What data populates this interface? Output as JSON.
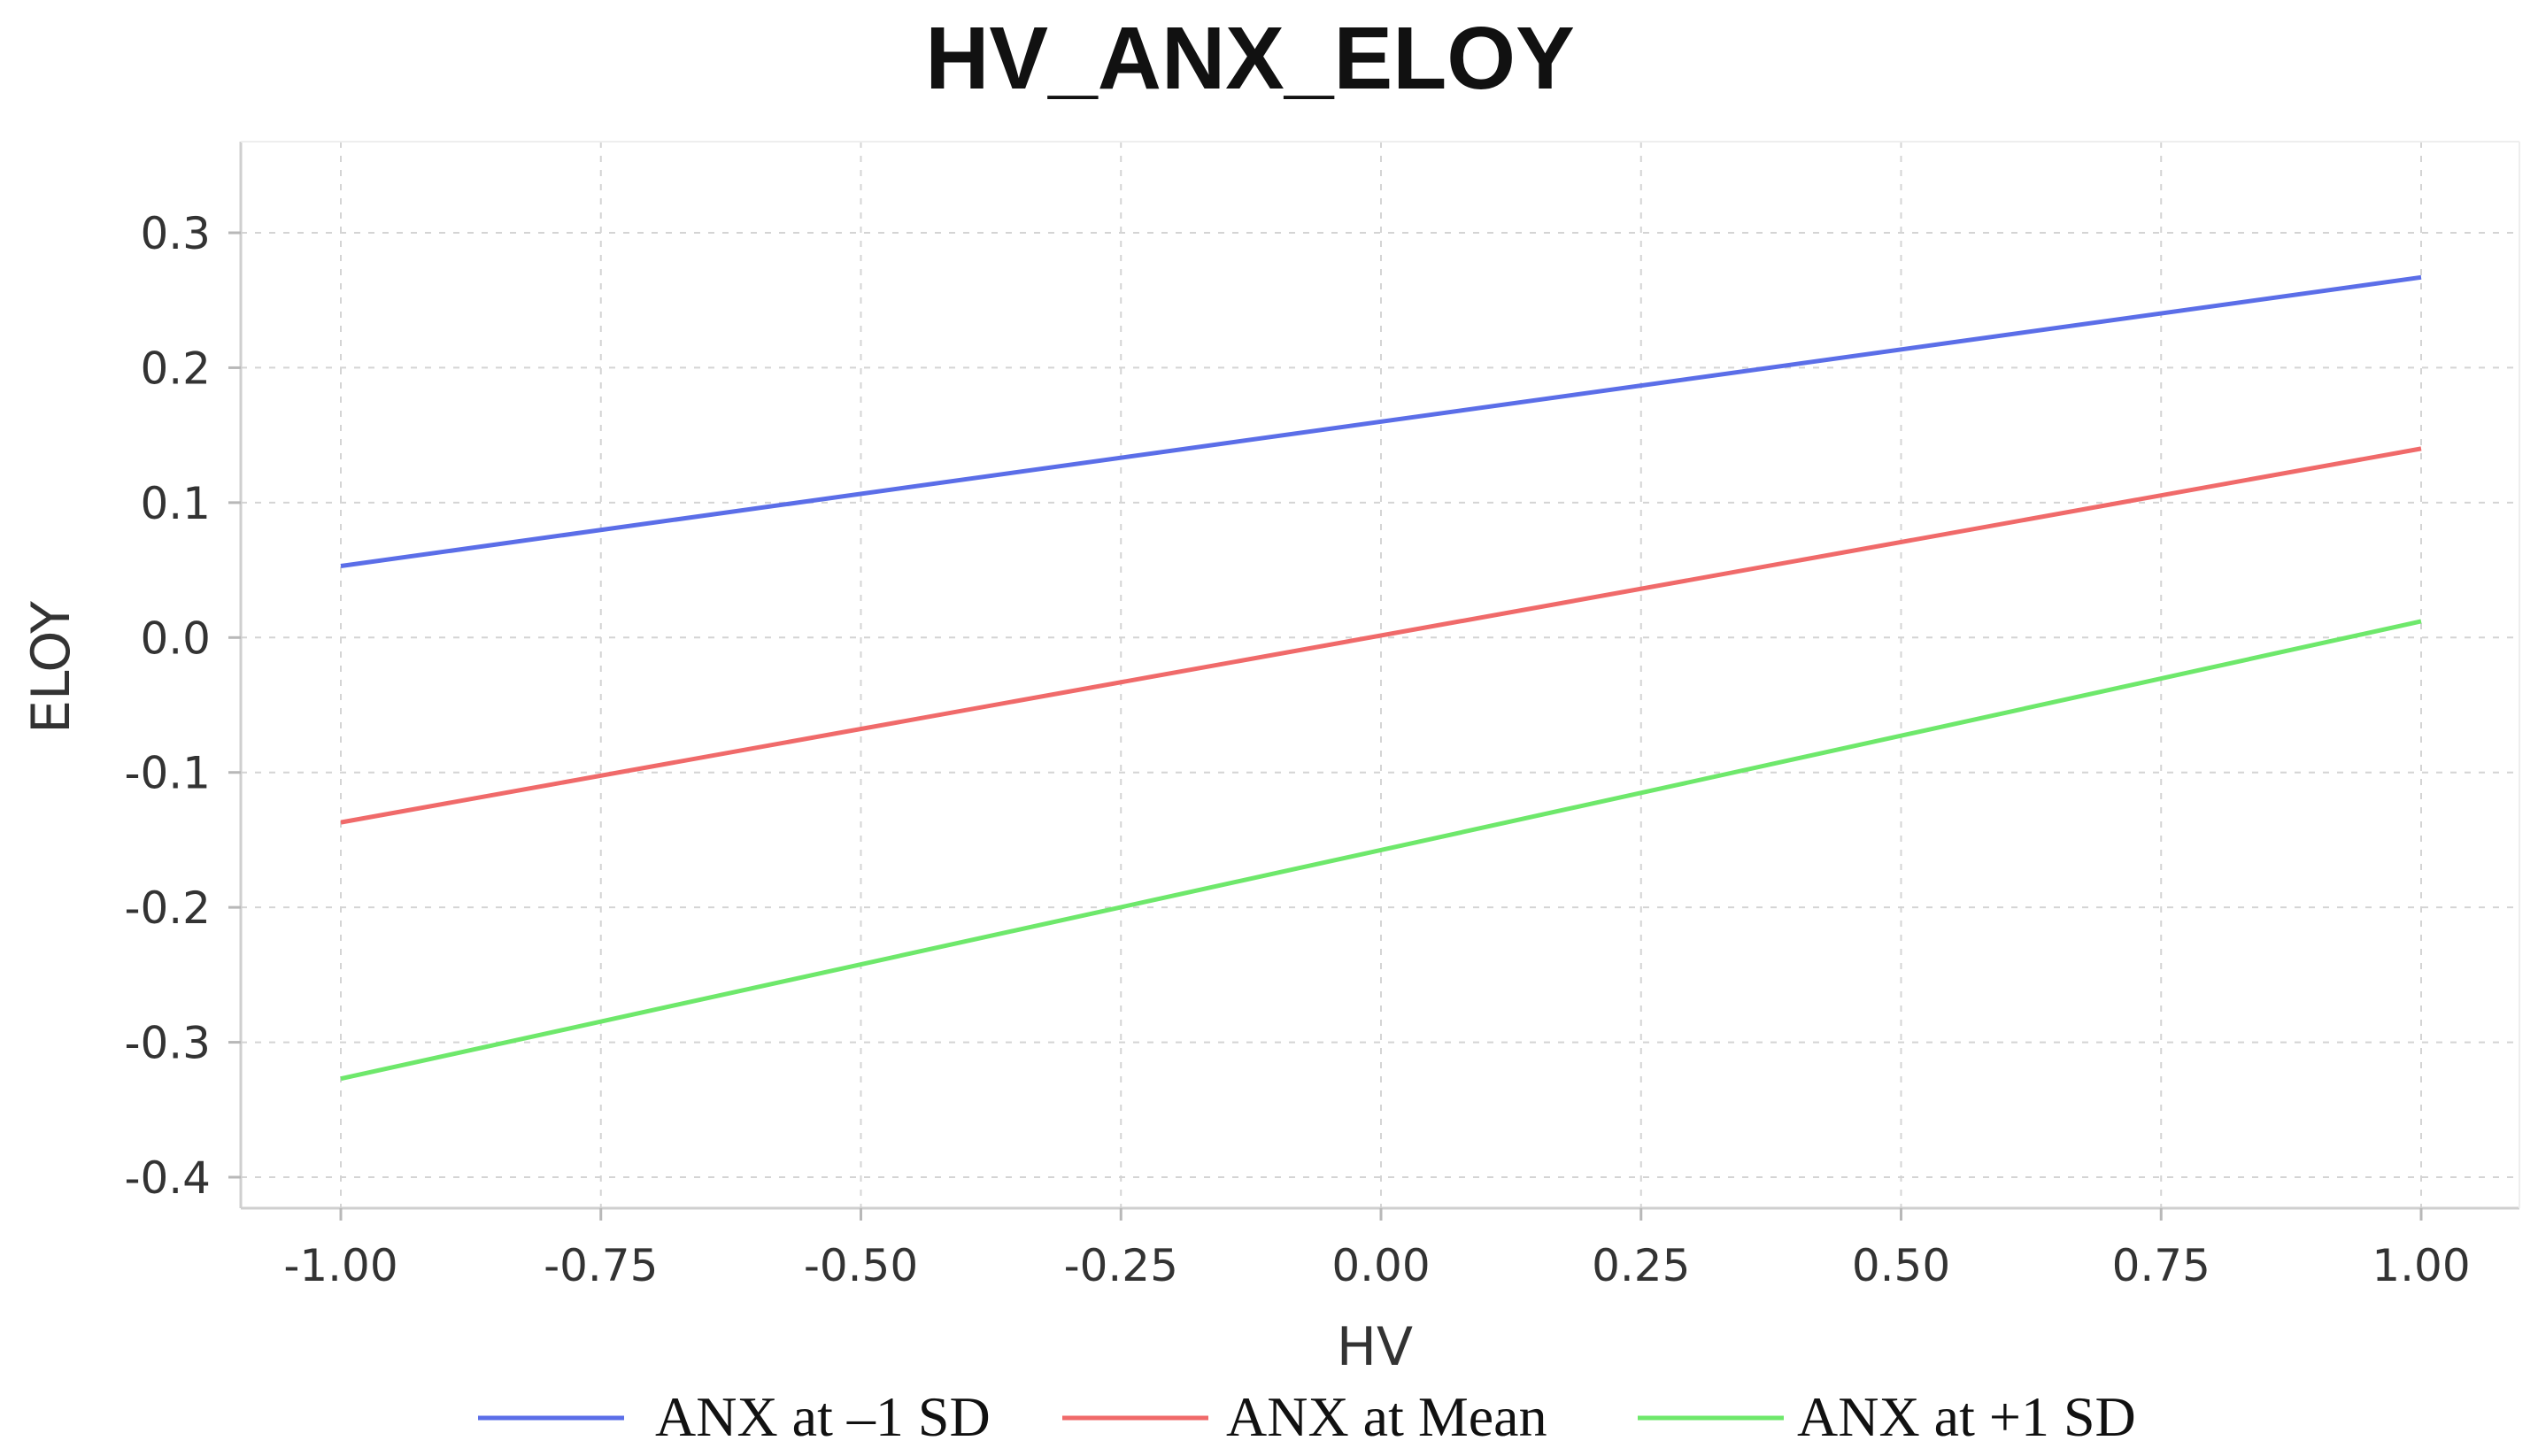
{
  "chart_data": {
    "type": "line",
    "title": "HV_ANX_ELOY",
    "xlabel": "HV",
    "ylabel": "ELOY",
    "xlim": [
      -1.0,
      1.0
    ],
    "ylim": [
      -0.4,
      0.3
    ],
    "grid": true,
    "legend_position": "bottom",
    "x_ticks": [
      "-1.00",
      "-0.75",
      "-0.50",
      "-0.25",
      "0.00",
      "0.25",
      "0.50",
      "0.75",
      "1.00"
    ],
    "y_ticks": [
      "0.3",
      "0.2",
      "0.1",
      "0.0",
      "-0.1",
      "-0.2",
      "-0.3",
      "-0.4"
    ],
    "series": [
      {
        "name": "ANX at –1 SD",
        "color": "#5b6ee8",
        "x": [
          -1.0,
          1.0
        ],
        "y": [
          0.053,
          0.267
        ]
      },
      {
        "name": "ANX at Mean",
        "color": "#f06a6a",
        "x": [
          -1.0,
          1.0
        ],
        "y": [
          -0.137,
          0.14
        ]
      },
      {
        "name": "ANX at +1 SD",
        "color": "#6ee86b",
        "x": [
          -1.0,
          1.0
        ],
        "y": [
          -0.327,
          0.012
        ]
      }
    ]
  }
}
